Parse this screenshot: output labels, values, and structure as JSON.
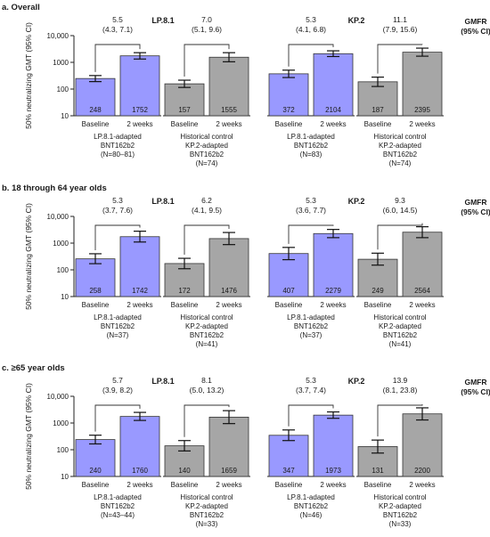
{
  "panels_header": {
    "gmfr_label": "GMFR",
    "ci_label": "(95% CI)"
  },
  "colors": {
    "adapted_bar": "#9999ff",
    "control_bar": "#a6a6a6",
    "bar_stroke": "#333333",
    "text": "#1a1a1a"
  },
  "chart_data": [
    {
      "type": "bar",
      "title": "a.  Overall",
      "ylabel": "50% neutralizing GMT (95% CI)",
      "y_scale": "log",
      "ylim": [
        10,
        10000
      ],
      "yticks": [
        "10,000",
        "1000",
        "100",
        "10"
      ],
      "xticks": [
        "Baseline",
        "2 weeks"
      ],
      "groups": [
        {
          "variant": "LP.8.1",
          "gmfr": "5.5",
          "gmfr_ci": "(4.3, 7.1)",
          "values": [
            248,
            1752
          ],
          "labels": [
            "248",
            "1752"
          ],
          "ci": [
            [
              190,
              320
            ],
            [
              1330,
              2300
            ]
          ]
        },
        {
          "variant": "LP.8.1",
          "gmfr": "7.0",
          "gmfr_ci": "(5.1, 9.6)",
          "values": [
            157,
            1555
          ],
          "labels": [
            "157",
            "1555"
          ],
          "ci": [
            [
              115,
              215
            ],
            [
              1050,
              2300
            ]
          ]
        },
        {
          "variant": "KP.2",
          "gmfr": "5.3",
          "gmfr_ci": "(4.1, 6.8)",
          "values": [
            372,
            2104
          ],
          "labels": [
            "372",
            "2104"
          ],
          "ci": [
            [
              270,
              510
            ],
            [
              1650,
              2700
            ]
          ]
        },
        {
          "variant": "KP.2",
          "gmfr": "11.1",
          "gmfr_ci": "(7.9, 15.6)",
          "values": [
            187,
            2395
          ],
          "labels": [
            "187",
            "2395"
          ],
          "ci": [
            [
              125,
              280
            ],
            [
              1700,
              3400
            ]
          ]
        }
      ],
      "group_labels": [
        [
          "LP.8.1-adapted",
          "BNT162b2",
          "(N=80–81)"
        ],
        [
          "Historical control",
          "KP.2-adapted",
          "BNT162b2",
          "(N=74)"
        ],
        [
          "LP.8.1-adapted",
          "BNT162b2",
          "(N=83)"
        ],
        [
          "Historical control",
          "KP.2-adapted",
          "BNT162b2",
          "(N=74)"
        ]
      ]
    },
    {
      "type": "bar",
      "title": "b.  18 through 64 year olds",
      "ylabel": "50% neutralizing GMT (95% CI)",
      "y_scale": "log",
      "ylim": [
        10,
        10000
      ],
      "yticks": [
        "10,000",
        "1000",
        "100",
        "10"
      ],
      "xticks": [
        "Baseline",
        "2 weeks"
      ],
      "groups": [
        {
          "variant": "LP.8.1",
          "gmfr": "5.3",
          "gmfr_ci": "(3.7, 7.6)",
          "values": [
            258,
            1742
          ],
          "labels": [
            "258",
            "1742"
          ],
          "ci": [
            [
              170,
              400
            ],
            [
              1100,
              2800
            ]
          ]
        },
        {
          "variant": "LP.8.1",
          "gmfr": "6.2",
          "gmfr_ci": "(4.1, 9.5)",
          "values": [
            172,
            1476
          ],
          "labels": [
            "172",
            "1476"
          ],
          "ci": [
            [
              110,
              270
            ],
            [
              880,
              2500
            ]
          ]
        },
        {
          "variant": "KP.2",
          "gmfr": "5.3",
          "gmfr_ci": "(3.6, 7.7)",
          "values": [
            407,
            2279
          ],
          "labels": [
            "407",
            "2279"
          ],
          "ci": [
            [
              240,
              690
            ],
            [
              1600,
              3250
            ]
          ]
        },
        {
          "variant": "KP.2",
          "gmfr": "9.3",
          "gmfr_ci": "(6.0, 14.5)",
          "values": [
            249,
            2564
          ],
          "labels": [
            "249",
            "2564"
          ],
          "ci": [
            [
              150,
              420
            ],
            [
              1600,
              4100
            ]
          ]
        }
      ],
      "group_labels": [
        [
          "LP.8.1-adapted",
          "BNT162b2",
          "(N=37)"
        ],
        [
          "Historical control",
          "KP.2-adapted",
          "BNT162b2",
          "(N=41)"
        ],
        [
          "LP.8.1-adapted",
          "BNT162b2",
          "(N=37)"
        ],
        [
          "Historical control",
          "KP.2-adapted",
          "BNT162b2",
          "(N=41)"
        ]
      ]
    },
    {
      "type": "bar",
      "title": "c.  ≥65 year olds",
      "ylabel": "50% neutralizing GMT (95% CI)",
      "y_scale": "log",
      "ylim": [
        10,
        10000
      ],
      "yticks": [
        "10,000",
        "1000",
        "100",
        "10"
      ],
      "xticks": [
        "Baseline",
        "2 weeks"
      ],
      "groups": [
        {
          "variant": "LP.8.1",
          "gmfr": "5.7",
          "gmfr_ci": "(3.9, 8.2)",
          "values": [
            240,
            1760
          ],
          "labels": [
            "240",
            "1760"
          ],
          "ci": [
            [
              165,
              350
            ],
            [
              1250,
              2500
            ]
          ]
        },
        {
          "variant": "LP.8.1",
          "gmfr": "8.1",
          "gmfr_ci": "(5.0, 13.2)",
          "values": [
            140,
            1659
          ],
          "labels": [
            "140",
            "1659"
          ],
          "ci": [
            [
              90,
              220
            ],
            [
              950,
              2900
            ]
          ]
        },
        {
          "variant": "KP.2",
          "gmfr": "5.3",
          "gmfr_ci": "(3.7, 7.4)",
          "values": [
            347,
            1973
          ],
          "labels": [
            "347",
            "1973"
          ],
          "ci": [
            [
              220,
              550
            ],
            [
              1500,
              2600
            ]
          ]
        },
        {
          "variant": "KP.2",
          "gmfr": "13.9",
          "gmfr_ci": "(8.1, 23.8)",
          "values": [
            131,
            2200
          ],
          "labels": [
            "131",
            "2200"
          ],
          "ci": [
            [
              75,
              230
            ],
            [
              1300,
              3700
            ]
          ]
        }
      ],
      "group_labels": [
        [
          "LP.8.1-adapted",
          "BNT162b2",
          "(N=43–44)"
        ],
        [
          "Historical control",
          "KP.2-adapted",
          "BNT162b2",
          "(N=33)"
        ],
        [
          "LP.8.1-adapted",
          "BNT162b2",
          "(N=46)"
        ],
        [
          "Historical control",
          "KP.2-adapted",
          "BNT162b2",
          "(N=33)"
        ]
      ]
    }
  ]
}
